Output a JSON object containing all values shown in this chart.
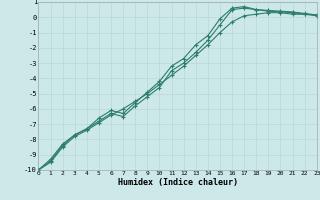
{
  "xlabel": "Humidex (Indice chaleur)",
  "bg_color": "#cce8e8",
  "grid_color": "#b8d8d8",
  "line_color": "#2d7d6b",
  "xlim": [
    0,
    23
  ],
  "ylim": [
    -10,
    1
  ],
  "xticks": [
    0,
    1,
    2,
    3,
    4,
    5,
    6,
    7,
    8,
    9,
    10,
    11,
    12,
    13,
    14,
    15,
    16,
    17,
    18,
    19,
    20,
    21,
    22,
    23
  ],
  "yticks": [
    1,
    0,
    -1,
    -2,
    -3,
    -4,
    -5,
    -6,
    -7,
    -8,
    -9,
    -10
  ],
  "series1_x": [
    0,
    1,
    2,
    3,
    4,
    5,
    6,
    7,
    8,
    9,
    10,
    11,
    12,
    13,
    14,
    15,
    16,
    17,
    18,
    19,
    20,
    21,
    22,
    23
  ],
  "series1_y": [
    -10,
    -9.5,
    -8.5,
    -7.8,
    -7.4,
    -6.9,
    -6.4,
    -6.0,
    -5.5,
    -5.0,
    -4.4,
    -3.8,
    -3.2,
    -2.5,
    -1.8,
    -1.0,
    -0.3,
    0.1,
    0.2,
    0.3,
    0.3,
    0.2,
    0.2,
    0.1
  ],
  "series2_x": [
    0,
    1,
    2,
    3,
    4,
    5,
    6,
    7,
    8,
    9,
    10,
    11,
    12,
    13,
    14,
    15,
    16,
    17,
    18,
    19,
    20,
    21,
    22,
    23
  ],
  "series2_y": [
    -10,
    -9.4,
    -8.4,
    -7.7,
    -7.3,
    -6.8,
    -6.3,
    -6.5,
    -5.8,
    -5.2,
    -4.6,
    -3.5,
    -3.0,
    -2.3,
    -1.5,
    -0.5,
    0.5,
    0.6,
    0.5,
    0.4,
    0.35,
    0.3,
    0.2,
    0.15
  ],
  "series3_x": [
    0,
    1,
    2,
    3,
    4,
    5,
    6,
    7,
    8,
    9,
    10,
    11,
    12,
    13,
    14,
    15,
    16,
    17,
    18,
    19,
    20,
    21,
    22,
    23
  ],
  "series3_y": [
    -10,
    -9.3,
    -8.3,
    -7.7,
    -7.3,
    -6.6,
    -6.1,
    -6.3,
    -5.6,
    -4.9,
    -4.2,
    -3.2,
    -2.7,
    -1.8,
    -1.2,
    -0.1,
    0.6,
    0.7,
    0.5,
    0.45,
    0.4,
    0.35,
    0.25,
    0.15
  ]
}
